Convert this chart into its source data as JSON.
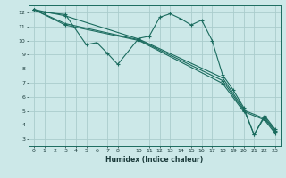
{
  "xlabel": "Humidex (Indice chaleur)",
  "ylabel": "",
  "bg_color": "#cce8e8",
  "grid_color": "#aacccc",
  "line_color": "#1a6b5e",
  "xlim": [
    -0.5,
    23.5
  ],
  "ylim": [
    2.5,
    12.5
  ],
  "xticks": [
    0,
    1,
    2,
    3,
    4,
    5,
    6,
    7,
    8,
    10,
    11,
    12,
    13,
    14,
    15,
    16,
    17,
    18,
    19,
    20,
    21,
    22,
    23
  ],
  "yticks": [
    3,
    4,
    5,
    6,
    7,
    8,
    9,
    10,
    11,
    12
  ],
  "lines": [
    [
      [
        0,
        12.2
      ],
      [
        1,
        12.0
      ],
      [
        3,
        11.85
      ],
      [
        5,
        9.7
      ],
      [
        6,
        9.85
      ],
      [
        7,
        9.1
      ],
      [
        8,
        8.3
      ],
      [
        10,
        10.15
      ],
      [
        11,
        10.3
      ],
      [
        12,
        11.65
      ],
      [
        13,
        11.9
      ],
      [
        14,
        11.55
      ],
      [
        15,
        11.1
      ],
      [
        16,
        11.45
      ],
      [
        17,
        10.0
      ],
      [
        18,
        7.55
      ],
      [
        19,
        6.5
      ],
      [
        20,
        5.25
      ],
      [
        21,
        3.3
      ],
      [
        22,
        4.65
      ],
      [
        23,
        3.7
      ]
    ],
    [
      [
        0,
        12.2
      ],
      [
        3,
        11.75
      ],
      [
        10,
        10.1
      ],
      [
        18,
        7.35
      ],
      [
        20,
        5.15
      ],
      [
        21,
        3.3
      ],
      [
        22,
        4.55
      ],
      [
        23,
        3.6
      ]
    ],
    [
      [
        0,
        12.2
      ],
      [
        3,
        11.2
      ],
      [
        10,
        10.05
      ],
      [
        18,
        7.15
      ],
      [
        20,
        5.05
      ],
      [
        22,
        4.45
      ],
      [
        23,
        3.5
      ]
    ],
    [
      [
        0,
        12.2
      ],
      [
        3,
        11.1
      ],
      [
        10,
        10.0
      ],
      [
        18,
        6.95
      ],
      [
        20,
        4.95
      ],
      [
        22,
        4.35
      ],
      [
        23,
        3.4
      ]
    ]
  ]
}
